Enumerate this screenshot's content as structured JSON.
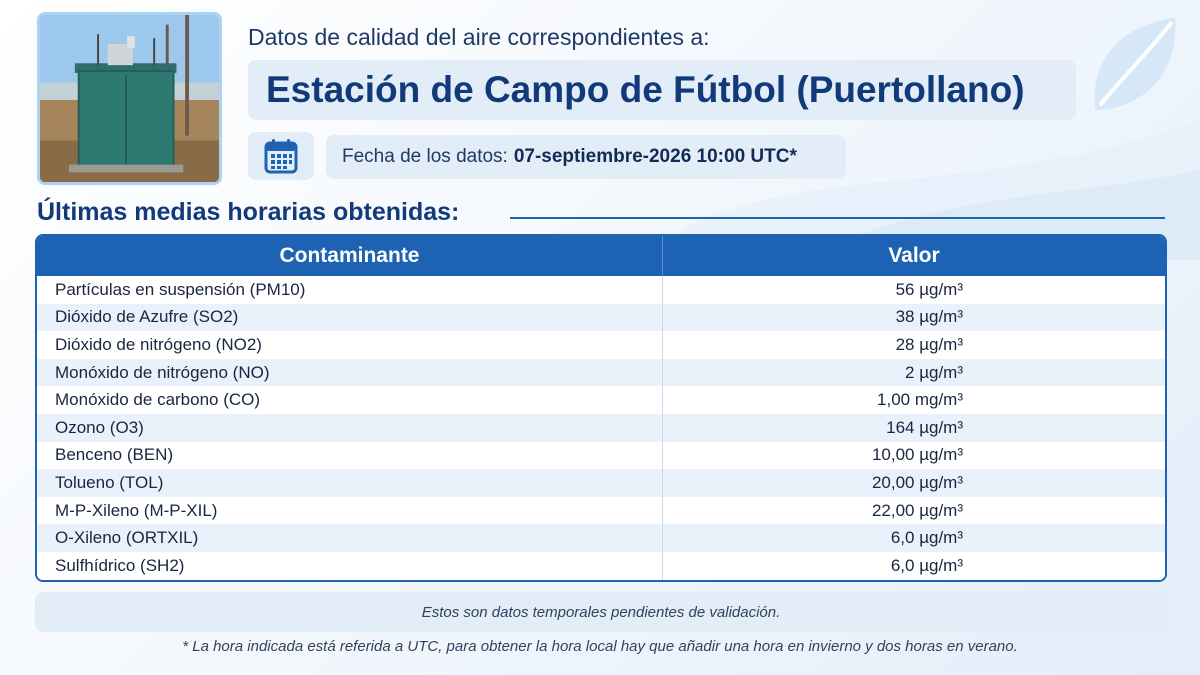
{
  "header": {
    "subtitle": "Datos de calidad del aire correspondientes a:",
    "station_name": "Estación de Campo de Fútbol (Puertollano)",
    "date_label": "Fecha de los datos:",
    "date_value": "07-septiembre-2026 10:00 UTC*",
    "photo_icon": "monitoring-station-photo",
    "calendar_icon": "calendar-icon"
  },
  "section": {
    "title": "Últimas medias horarias obtenidas:"
  },
  "table": {
    "headers": [
      "Contaminante",
      "Valor"
    ],
    "rows": [
      {
        "pollutant": "Partículas en suspensión (PM10)",
        "value": "56 µg/m³"
      },
      {
        "pollutant": "Dióxido de Azufre (SO2)",
        "value": "38 µg/m³"
      },
      {
        "pollutant": "Dióxido de nitrógeno (NO2)",
        "value": "28 µg/m³"
      },
      {
        "pollutant": "Monóxido de nitrógeno (NO)",
        "value": "2 µg/m³"
      },
      {
        "pollutant": "Monóxido de carbono (CO)",
        "value": "1,00 mg/m³"
      },
      {
        "pollutant": "Ozono (O3)",
        "value": "164 µg/m³"
      },
      {
        "pollutant": "Benceno (BEN)",
        "value": "10,00 µg/m³"
      },
      {
        "pollutant": "Tolueno (TOL)",
        "value": "20,00 µg/m³"
      },
      {
        "pollutant": "M-P-Xileno (M-P-XIL)",
        "value": "22,00 µg/m³"
      },
      {
        "pollutant": "O-Xileno (ORTXIL)",
        "value": "6,0 µg/m³"
      },
      {
        "pollutant": "Sulfhídrico (SH2)",
        "value": "6,0 µg/m³"
      }
    ]
  },
  "notes": {
    "validation": "Estos son datos temporales pendientes de validación.",
    "utc_footnote": "* La hora indicada está referida a UTC, para obtener la hora local hay que añadir una hora en invierno y dos horas en verano."
  },
  "colors": {
    "primary": "#1e63b3",
    "title": "#123a7a",
    "panel": "#e2edf8"
  }
}
